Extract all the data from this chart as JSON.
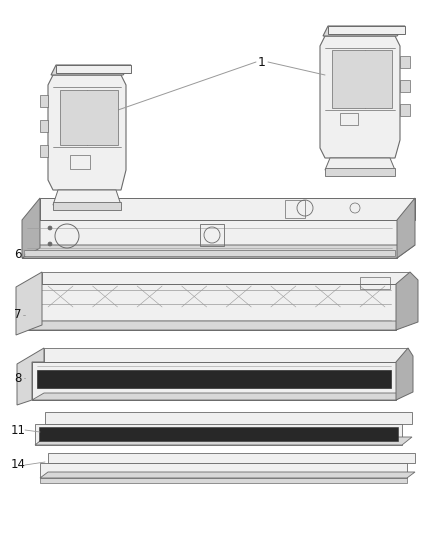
{
  "bg_color": "#ffffff",
  "lc": "#6a6a6a",
  "lc2": "#999999",
  "dark": "#333333",
  "fill_light": "#f0f0f0",
  "fill_mid": "#d8d8d8",
  "fill_dark": "#b0b0b0",
  "fill_black": "#282828",
  "label_fs": 8.5,
  "label_color": "#111111"
}
